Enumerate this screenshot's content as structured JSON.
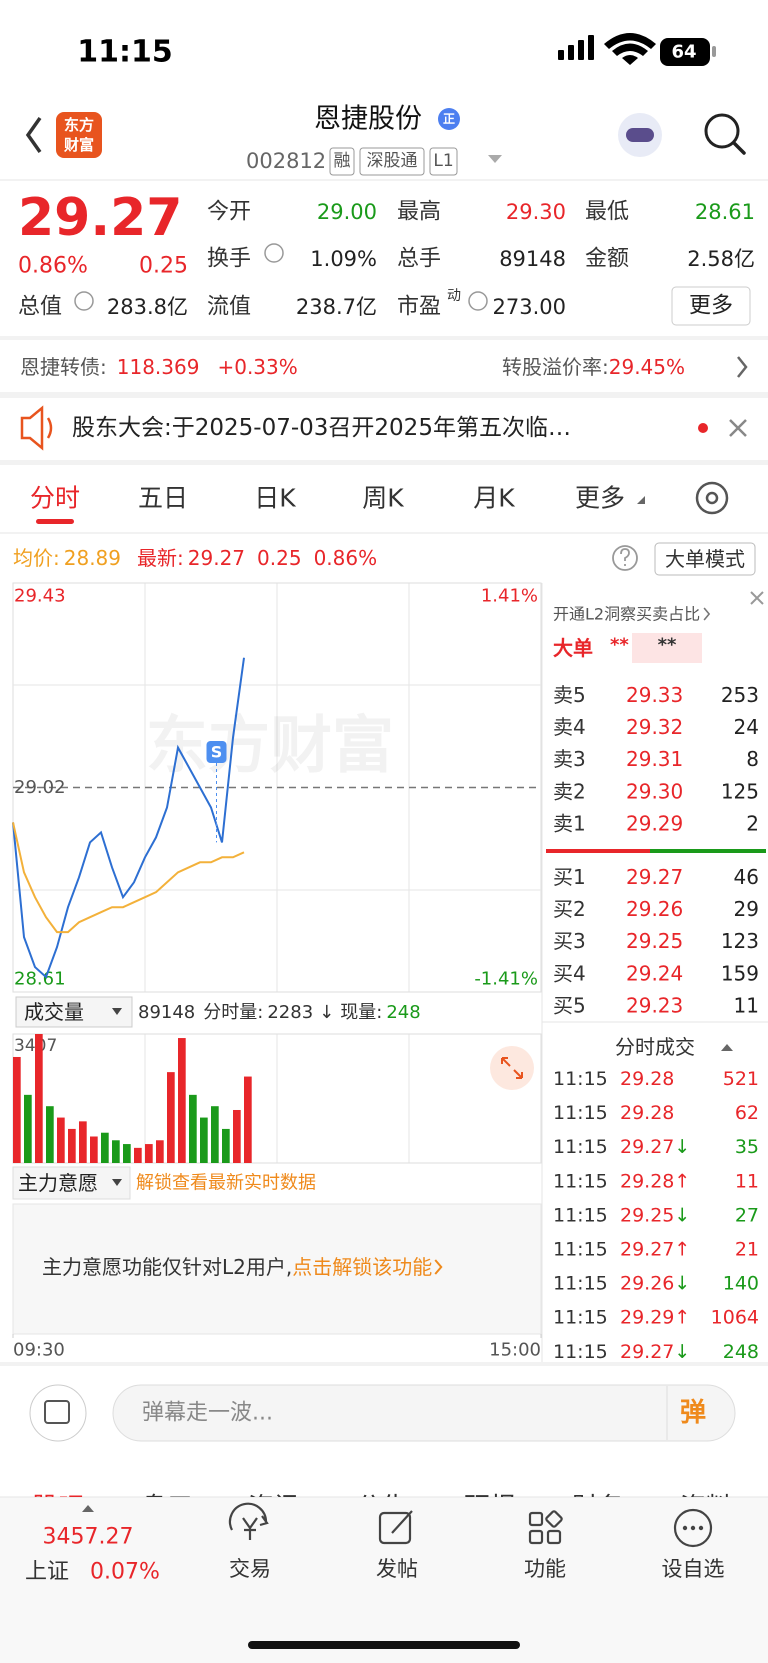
{
  "status_bar": {
    "time": "11:15",
    "battery": "64"
  },
  "header": {
    "logo": [
      "东方",
      "财富"
    ],
    "title": "恩捷股份",
    "badge": "正",
    "code": "002812",
    "tags": [
      "融",
      "深股通",
      "L1"
    ]
  },
  "quote": {
    "price": "29.27",
    "change_pct": "0.86%",
    "change": "0.25",
    "fields": [
      {
        "label": "今开",
        "value": "29.00"
      },
      {
        "label": "最高",
        "value": "29.30"
      },
      {
        "label": "最低",
        "value": "28.61"
      },
      {
        "label": "换手",
        "value": "1.09%"
      },
      {
        "label": "总手",
        "value": "89148"
      },
      {
        "label": "金额",
        "value": "2.58亿"
      },
      {
        "label": "总值",
        "value": "283.8亿"
      },
      {
        "label": "流值",
        "value": "238.7亿"
      },
      {
        "label": "市盈",
        "sup": "动",
        "value": "273.00"
      }
    ],
    "more": "更多"
  },
  "bond": {
    "name": "恩捷转债:",
    "price": "118.369",
    "change": "+0.33%",
    "premium_label": "转股溢价率:",
    "premium": "29.45%"
  },
  "notice": "股东大会:于2025-07-03召开2025年第五次临…",
  "tabs": [
    "分时",
    "五日",
    "日K",
    "周K",
    "月K",
    "更多"
  ],
  "summary": {
    "avg_label": "均价:",
    "avg": "28.89",
    "last_label": "最新:",
    "last": "29.27",
    "change": "0.25",
    "change_pct": "0.86%",
    "mode": "大单模式"
  },
  "chart_data": [
    {
      "type": "line",
      "x": [
        0,
        5,
        10,
        15,
        20,
        25,
        30,
        35,
        40,
        45,
        50,
        55,
        60,
        65,
        70,
        75,
        80,
        85,
        90,
        95,
        100,
        105
      ],
      "xlim": [
        0,
        240
      ],
      "xticks": [
        {
          "value": 0,
          "label": "09:30"
        },
        {
          "value": 240,
          "label": "15:00"
        }
      ],
      "ylim": [
        28.61,
        29.43
      ],
      "yticks": [
        28.61,
        29.02,
        29.43
      ],
      "y2lim": [
        -1.41,
        1.41
      ],
      "y2ticks": [
        {
          "value": -1.41,
          "label": "-1.41%"
        },
        {
          "value": 1.41,
          "label": "1.41%"
        }
      ],
      "series": [
        {
          "color": "#2d6fd2",
          "values": [
            28.95,
            28.72,
            28.66,
            28.64,
            28.7,
            28.78,
            28.84,
            28.91,
            28.93,
            28.86,
            28.8,
            28.83,
            28.88,
            28.92,
            28.98,
            29.1,
            29.06,
            29.02,
            28.98,
            28.91,
            29.12,
            29.28
          ]
        },
        {
          "color": "#f3b13a",
          "values": [
            28.95,
            28.85,
            28.8,
            28.76,
            28.73,
            28.73,
            28.75,
            28.76,
            28.77,
            28.78,
            28.78,
            28.79,
            28.8,
            28.81,
            28.83,
            28.85,
            28.86,
            28.87,
            28.87,
            28.88,
            28.88,
            28.89
          ]
        }
      ],
      "annotation": "S",
      "watermark": "东方财富"
    },
    {
      "type": "bar",
      "x": [
        0,
        5,
        10,
        15,
        20,
        25,
        30,
        35,
        40,
        45,
        50,
        55,
        60,
        65,
        70,
        75,
        80,
        85,
        90,
        95,
        100,
        105
      ],
      "xlim": [
        0,
        240
      ],
      "ylim": [
        0,
        3407
      ],
      "yticks": [
        3407
      ],
      "values": [
        2800,
        1800,
        3407,
        1500,
        1200,
        900,
        1100,
        700,
        800,
        600,
        500,
        400,
        500,
        600,
        2400,
        3300,
        1800,
        1200,
        1500,
        900,
        1400,
        2283
      ],
      "colors": [
        "#e8262a",
        "#1a9a1a",
        "#e8262a",
        "#1a9a1a",
        "#e8262a",
        "#e8262a",
        "#e8262a",
        "#e8262a",
        "#1a9a1a",
        "#1a9a1a",
        "#1a9a1a",
        "#e8262a",
        "#e8262a",
        "#e8262a",
        "#e8262a",
        "#e8262a",
        "#1a9a1a",
        "#1a9a1a",
        "#1a9a1a",
        "#1a9a1a",
        "#e8262a",
        "#e8262a"
      ]
    }
  ],
  "volume_header": {
    "selector": "成交量",
    "total": "89148",
    "minute_label": "分时量:",
    "minute": "2283",
    "direction": "↓",
    "current_label": "现量:",
    "current": "248"
  },
  "mainforce": {
    "selector": "主力意愿",
    "unlock": "解锁查看最新实时数据",
    "message": "主力意愿功能仅针对L2用户,",
    "action": "点击解锁该功能"
  },
  "order_book": {
    "promo": "开通L2洞察买卖占比",
    "big_order": {
      "label": "大单",
      "buy": "**",
      "sell": "**"
    },
    "asks": [
      [
        "卖5",
        "29.33",
        "253"
      ],
      [
        "卖4",
        "29.32",
        "24"
      ],
      [
        "卖3",
        "29.31",
        "8"
      ],
      [
        "卖2",
        "29.30",
        "125"
      ],
      [
        "卖1",
        "29.29",
        "2"
      ]
    ],
    "bids": [
      [
        "买1",
        "29.27",
        "46"
      ],
      [
        "买2",
        "29.26",
        "29"
      ],
      [
        "买3",
        "29.25",
        "123"
      ],
      [
        "买4",
        "29.24",
        "159"
      ],
      [
        "买5",
        "29.23",
        "11"
      ]
    ]
  },
  "trades": {
    "title": "分时成交",
    "rows": [
      {
        "time": "11:15",
        "price": "29.28",
        "volume": "521"
      },
      {
        "time": "11:15",
        "price": "29.28",
        "volume": "62"
      },
      {
        "time": "11:15",
        "price": "29.27",
        "dir": "↓",
        "volume": "35"
      },
      {
        "time": "11:15",
        "price": "29.28",
        "dir": "↑",
        "volume": "11"
      },
      {
        "time": "11:15",
        "price": "29.25",
        "dir": "↓",
        "volume": "27"
      },
      {
        "time": "11:15",
        "price": "29.27",
        "dir": "↑",
        "volume": "21"
      },
      {
        "time": "11:15",
        "price": "29.26",
        "dir": "↓",
        "volume": "140"
      },
      {
        "time": "11:15",
        "price": "29.29",
        "dir": "↑",
        "volume": "1064"
      },
      {
        "time": "11:15",
        "price": "29.27",
        "dir": "↓",
        "volume": "248"
      }
    ]
  },
  "comment": {
    "placeholder": "弹幕走一波...",
    "button": "弹"
  },
  "sub_tabs": [
    "股吧",
    "盘口",
    "资讯",
    "公告",
    "研报",
    "财务",
    "资料"
  ],
  "bottom_nav": {
    "index_value": "3457.27",
    "index_name": "上证",
    "index_pct": "0.07%",
    "items": [
      "交易",
      "发帖",
      "功能",
      "设自选"
    ]
  }
}
